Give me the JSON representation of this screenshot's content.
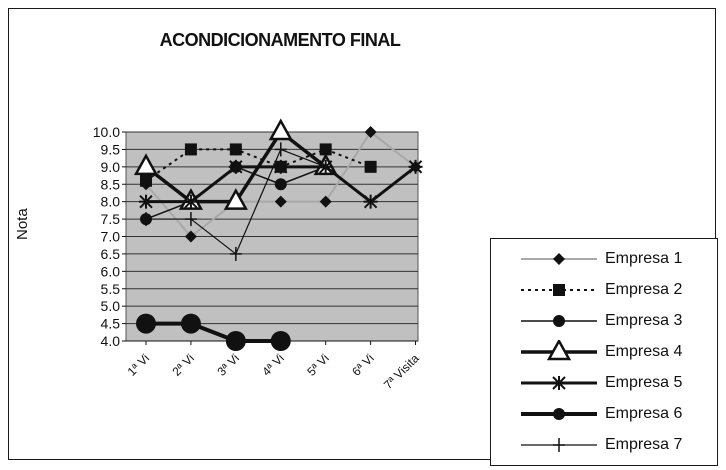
{
  "chart_data": {
    "type": "line",
    "title": "ACONDICIONAMENTO FINAL",
    "ylabel": "Nota",
    "xlabel": "",
    "categories": [
      "1ª Vi",
      "2ª Vi",
      "3ª Vi",
      "4ª Vi",
      "5ª Vi",
      "6ª Vi",
      "7ª Visita"
    ],
    "ylim": [
      4.0,
      10.0
    ],
    "yticks": [
      "4.0",
      "4.5",
      "5.0",
      "5.5",
      "6.0",
      "6.5",
      "7.0",
      "7.5",
      "8.0",
      "8.5",
      "9.0",
      "9.5",
      "10.0"
    ],
    "grid": true,
    "plot_background": "#c0c0c0",
    "legend_position": "bottom-right",
    "series": [
      {
        "name": "Empresa 1",
        "values": [
          8.5,
          7.0,
          8.0,
          8.0,
          8.0,
          10.0,
          9.0
        ],
        "color": "#a8a8a8",
        "marker": "diamond",
        "line": "solid",
        "line_width": 2
      },
      {
        "name": "Empresa 2",
        "values": [
          8.6,
          9.5,
          9.5,
          9.0,
          9.5,
          9.0,
          null
        ],
        "color": "#111111",
        "marker": "square",
        "line": "dotted",
        "line_width": 2
      },
      {
        "name": "Empresa 3",
        "values": [
          7.5,
          8.0,
          9.0,
          8.5,
          9.0,
          null,
          null
        ],
        "color": "#111111",
        "marker": "circle",
        "line": "solid",
        "line_width": 1.5
      },
      {
        "name": "Empresa 4",
        "values": [
          9.0,
          8.0,
          8.0,
          10.0,
          9.0,
          null,
          null
        ],
        "color": "#111111",
        "marker": "triangle",
        "line": "solid",
        "line_width": 3.5
      },
      {
        "name": "Empresa 5",
        "values": [
          8.0,
          8.0,
          9.0,
          9.0,
          9.0,
          8.0,
          9.0
        ],
        "color": "#111111",
        "marker": "asterisk",
        "line": "solid",
        "line_width": 3
      },
      {
        "name": "Empresa 6",
        "values": [
          4.5,
          4.5,
          4.0,
          4.0,
          null,
          null,
          null
        ],
        "color": "#111111",
        "marker": "big-circle",
        "line": "solid",
        "line_width": 4
      },
      {
        "name": "Empresa 7",
        "values": [
          7.5,
          7.5,
          6.5,
          9.5,
          9.0,
          null,
          null
        ],
        "color": "#111111",
        "marker": "plus",
        "line": "solid",
        "line_width": 1.2
      }
    ]
  }
}
